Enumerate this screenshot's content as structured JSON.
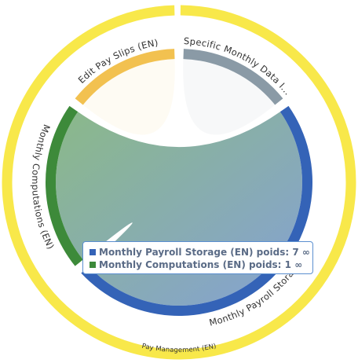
{
  "chart_data": {
    "type": "chord",
    "group": {
      "name": "Pay Management (EN)",
      "color": "#f8e84a"
    },
    "nodes": [
      {
        "name": "Specific Monthly Data I...",
        "color": "#8a9aa6",
        "value": 2
      },
      {
        "name": "Monthly Payroll Storage (EN)",
        "color": "#3463b7",
        "value": 7
      },
      {
        "name": "Monthly Computations (EN)",
        "color": "#3d8a3a",
        "value": 3
      },
      {
        "name": "Edit Pay Slips (EN)",
        "color": "#f2c150",
        "value": 2
      }
    ],
    "links": [
      {
        "source": 2,
        "target": 1
      }
    ],
    "tooltip": {
      "weight_label": "poids:",
      "items": [
        {
          "name": "Monthly Payroll Storage (EN)",
          "color": "#3463b7",
          "value": 7,
          "value_label": "7 ∞"
        },
        {
          "name": "Monthly Computations (EN)",
          "color": "#3d8a3a",
          "value": 1,
          "value_label": "1 ∞"
        }
      ]
    }
  }
}
